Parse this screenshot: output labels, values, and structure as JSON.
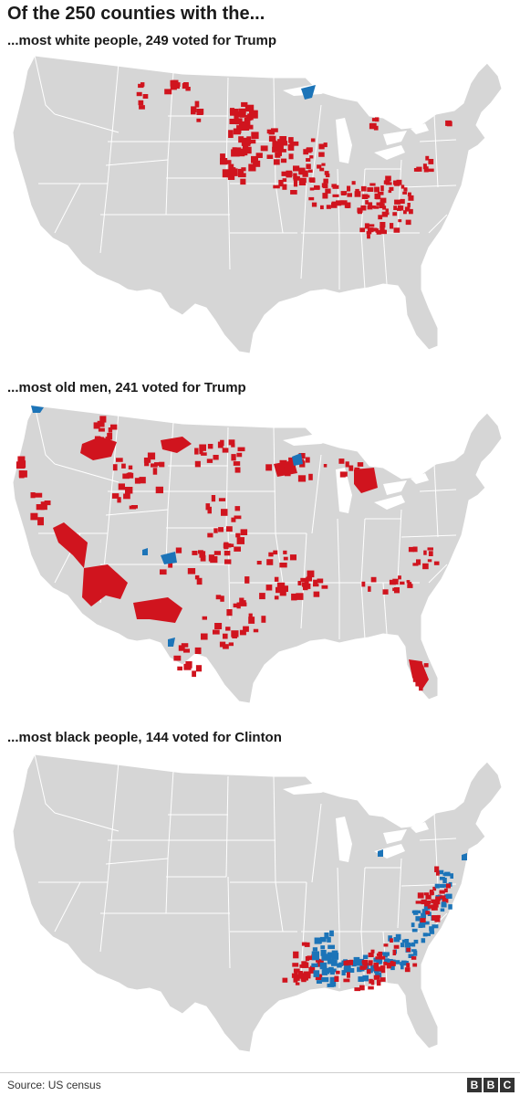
{
  "title": "Of the 250 counties with the...",
  "panels": [
    {
      "subtitle": "...most white people, 249 voted for Trump",
      "trump_counties": 249
    },
    {
      "subtitle": "...most old men, 241 voted for Trump",
      "trump_counties": 241
    },
    {
      "subtitle": "...most black people, 144 voted for Clinton",
      "clinton_counties": 144
    }
  ],
  "colors": {
    "land": "#d6d6d6",
    "border": "#ffffff",
    "trump": "#d0141e",
    "clinton": "#1c74b8"
  },
  "footer": {
    "source": "Source: US census",
    "logo_letters": [
      "B",
      "B",
      "C"
    ]
  }
}
